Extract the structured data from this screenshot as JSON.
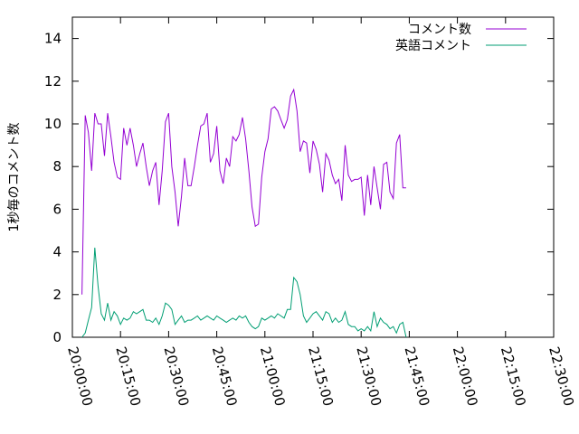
{
  "chart_data": {
    "type": "line",
    "ylabel": "1秒毎のコメント数",
    "xlabel": "",
    "ylim": [
      0,
      15
    ],
    "yticks": [
      0,
      2,
      4,
      6,
      8,
      10,
      12,
      14
    ],
    "xlim": [
      "20:00:00",
      "22:30:00"
    ],
    "xticks": [
      "20:00:00",
      "20:15:00",
      "20:30:00",
      "20:45:00",
      "21:00:00",
      "21:15:00",
      "21:30:00",
      "21:45:00",
      "22:00:00",
      "22:15:00",
      "22:30:00"
    ],
    "legend_position": "top-right",
    "grid": false,
    "series": [
      {
        "name": "コメント数",
        "color": "#9400d3",
        "points": [
          [
            "20:03:00",
            2.0
          ],
          [
            "20:04:00",
            10.4
          ],
          [
            "20:05:00",
            9.6
          ],
          [
            "20:06:00",
            7.8
          ],
          [
            "20:07:00",
            10.5
          ],
          [
            "20:08:00",
            10.0
          ],
          [
            "20:09:00",
            10.0
          ],
          [
            "20:10:00",
            8.5
          ],
          [
            "20:11:00",
            10.5
          ],
          [
            "20:12:00",
            9.4
          ],
          [
            "20:13:00",
            8.2
          ],
          [
            "20:14:00",
            7.5
          ],
          [
            "20:15:00",
            7.4
          ],
          [
            "20:16:00",
            9.8
          ],
          [
            "20:17:00",
            9.0
          ],
          [
            "20:18:00",
            9.8
          ],
          [
            "20:19:00",
            9.0
          ],
          [
            "20:20:00",
            8.0
          ],
          [
            "20:21:00",
            8.6
          ],
          [
            "20:22:00",
            9.1
          ],
          [
            "20:23:00",
            8.0
          ],
          [
            "20:24:00",
            7.1
          ],
          [
            "20:25:00",
            7.8
          ],
          [
            "20:26:00",
            8.2
          ],
          [
            "20:27:00",
            6.2
          ],
          [
            "20:28:00",
            7.8
          ],
          [
            "20:29:00",
            10.1
          ],
          [
            "20:30:00",
            10.5
          ],
          [
            "20:31:00",
            8.0
          ],
          [
            "20:32:00",
            6.8
          ],
          [
            "20:33:00",
            5.2
          ],
          [
            "20:34:00",
            6.6
          ],
          [
            "20:35:00",
            8.4
          ],
          [
            "20:36:00",
            7.1
          ],
          [
            "20:37:00",
            7.1
          ],
          [
            "20:38:00",
            8.0
          ],
          [
            "20:39:00",
            9.0
          ],
          [
            "20:40:00",
            9.9
          ],
          [
            "20:41:00",
            10.0
          ],
          [
            "20:42:00",
            10.5
          ],
          [
            "20:43:00",
            8.2
          ],
          [
            "20:44:00",
            8.6
          ],
          [
            "20:45:00",
            9.9
          ],
          [
            "20:46:00",
            7.8
          ],
          [
            "20:47:00",
            7.2
          ],
          [
            "20:48:00",
            8.4
          ],
          [
            "20:49:00",
            8.0
          ],
          [
            "20:50:00",
            9.4
          ],
          [
            "20:51:00",
            9.2
          ],
          [
            "20:52:00",
            9.5
          ],
          [
            "20:53:00",
            10.3
          ],
          [
            "20:54:00",
            9.3
          ],
          [
            "20:55:00",
            7.8
          ],
          [
            "20:56:00",
            6.1
          ],
          [
            "20:57:00",
            5.2
          ],
          [
            "20:58:00",
            5.3
          ],
          [
            "20:59:00",
            7.5
          ],
          [
            "21:00:00",
            8.7
          ],
          [
            "21:01:00",
            9.3
          ],
          [
            "21:02:00",
            10.7
          ],
          [
            "21:03:00",
            10.8
          ],
          [
            "21:04:00",
            10.6
          ],
          [
            "21:05:00",
            10.2
          ],
          [
            "21:06:00",
            9.8
          ],
          [
            "21:07:00",
            10.2
          ],
          [
            "21:08:00",
            11.3
          ],
          [
            "21:09:00",
            11.6
          ],
          [
            "21:10:00",
            10.6
          ],
          [
            "21:11:00",
            8.7
          ],
          [
            "21:12:00",
            9.2
          ],
          [
            "21:13:00",
            9.1
          ],
          [
            "21:14:00",
            7.7
          ],
          [
            "21:15:00",
            9.2
          ],
          [
            "21:16:00",
            8.8
          ],
          [
            "21:17:00",
            8.1
          ],
          [
            "21:18:00",
            6.8
          ],
          [
            "21:19:00",
            8.6
          ],
          [
            "21:20:00",
            8.3
          ],
          [
            "21:21:00",
            7.6
          ],
          [
            "21:22:00",
            7.2
          ],
          [
            "21:23:00",
            7.4
          ],
          [
            "21:24:00",
            6.4
          ],
          [
            "21:25:00",
            9.0
          ],
          [
            "21:26:00",
            7.6
          ],
          [
            "21:27:00",
            7.3
          ],
          [
            "21:28:00",
            7.4
          ],
          [
            "21:29:00",
            7.4
          ],
          [
            "21:30:00",
            7.5
          ],
          [
            "21:31:00",
            5.7
          ],
          [
            "21:32:00",
            7.6
          ],
          [
            "21:33:00",
            6.2
          ],
          [
            "21:34:00",
            8.0
          ],
          [
            "21:35:00",
            7.0
          ],
          [
            "21:36:00",
            6.0
          ],
          [
            "21:37:00",
            8.1
          ],
          [
            "21:38:00",
            8.2
          ],
          [
            "21:39:00",
            6.8
          ],
          [
            "21:40:00",
            6.5
          ],
          [
            "21:41:00",
            9.1
          ],
          [
            "21:42:00",
            9.5
          ],
          [
            "21:43:00",
            7.0
          ],
          [
            "21:44:00",
            7.0
          ]
        ]
      },
      {
        "name": "英語コメント",
        "color": "#009e73",
        "points": [
          [
            "20:03:00",
            0.0
          ],
          [
            "20:04:00",
            0.2
          ],
          [
            "20:05:00",
            0.8
          ],
          [
            "20:06:00",
            1.4
          ],
          [
            "20:07:00",
            4.2
          ],
          [
            "20:08:00",
            2.4
          ],
          [
            "20:09:00",
            1.1
          ],
          [
            "20:10:00",
            0.8
          ],
          [
            "20:11:00",
            1.6
          ],
          [
            "20:12:00",
            0.8
          ],
          [
            "20:13:00",
            1.2
          ],
          [
            "20:14:00",
            1.0
          ],
          [
            "20:15:00",
            0.6
          ],
          [
            "20:16:00",
            0.9
          ],
          [
            "20:17:00",
            0.8
          ],
          [
            "20:18:00",
            0.9
          ],
          [
            "20:19:00",
            1.2
          ],
          [
            "20:20:00",
            1.1
          ],
          [
            "20:21:00",
            1.2
          ],
          [
            "20:22:00",
            1.3
          ],
          [
            "20:23:00",
            0.8
          ],
          [
            "20:24:00",
            0.8
          ],
          [
            "20:25:00",
            0.7
          ],
          [
            "20:26:00",
            0.9
          ],
          [
            "20:27:00",
            0.6
          ],
          [
            "20:28:00",
            1.0
          ],
          [
            "20:29:00",
            1.6
          ],
          [
            "20:30:00",
            1.5
          ],
          [
            "20:31:00",
            1.3
          ],
          [
            "20:32:00",
            0.6
          ],
          [
            "20:33:00",
            0.8
          ],
          [
            "20:34:00",
            1.0
          ],
          [
            "20:35:00",
            0.7
          ],
          [
            "20:36:00",
            0.8
          ],
          [
            "20:37:00",
            0.8
          ],
          [
            "20:38:00",
            0.9
          ],
          [
            "20:39:00",
            1.0
          ],
          [
            "20:40:00",
            0.8
          ],
          [
            "20:41:00",
            0.9
          ],
          [
            "20:42:00",
            1.0
          ],
          [
            "20:43:00",
            0.9
          ],
          [
            "20:44:00",
            0.8
          ],
          [
            "20:45:00",
            1.0
          ],
          [
            "20:46:00",
            0.9
          ],
          [
            "20:47:00",
            0.8
          ],
          [
            "20:48:00",
            0.7
          ],
          [
            "20:49:00",
            0.8
          ],
          [
            "20:50:00",
            0.9
          ],
          [
            "20:51:00",
            0.8
          ],
          [
            "20:52:00",
            1.0
          ],
          [
            "20:53:00",
            0.9
          ],
          [
            "20:54:00",
            1.0
          ],
          [
            "20:55:00",
            0.7
          ],
          [
            "20:56:00",
            0.5
          ],
          [
            "20:57:00",
            0.4
          ],
          [
            "20:58:00",
            0.5
          ],
          [
            "20:59:00",
            0.9
          ],
          [
            "21:00:00",
            0.8
          ],
          [
            "21:01:00",
            0.9
          ],
          [
            "21:02:00",
            1.0
          ],
          [
            "21:03:00",
            0.9
          ],
          [
            "21:04:00",
            1.1
          ],
          [
            "21:05:00",
            1.0
          ],
          [
            "21:06:00",
            0.9
          ],
          [
            "21:07:00",
            1.3
          ],
          [
            "21:08:00",
            1.3
          ],
          [
            "21:09:00",
            2.8
          ],
          [
            "21:10:00",
            2.6
          ],
          [
            "21:11:00",
            2.0
          ],
          [
            "21:12:00",
            1.0
          ],
          [
            "21:13:00",
            0.7
          ],
          [
            "21:14:00",
            0.9
          ],
          [
            "21:15:00",
            1.1
          ],
          [
            "21:16:00",
            1.2
          ],
          [
            "21:17:00",
            1.0
          ],
          [
            "21:18:00",
            0.8
          ],
          [
            "21:19:00",
            1.2
          ],
          [
            "21:20:00",
            1.1
          ],
          [
            "21:21:00",
            0.7
          ],
          [
            "21:22:00",
            0.9
          ],
          [
            "21:23:00",
            0.7
          ],
          [
            "21:24:00",
            0.8
          ],
          [
            "21:25:00",
            1.2
          ],
          [
            "21:26:00",
            0.6
          ],
          [
            "21:27:00",
            0.5
          ],
          [
            "21:28:00",
            0.5
          ],
          [
            "21:29:00",
            0.3
          ],
          [
            "21:30:00",
            0.4
          ],
          [
            "21:31:00",
            0.3
          ],
          [
            "21:32:00",
            0.5
          ],
          [
            "21:33:00",
            0.3
          ],
          [
            "21:34:00",
            1.2
          ],
          [
            "21:35:00",
            0.5
          ],
          [
            "21:36:00",
            0.9
          ],
          [
            "21:37:00",
            0.7
          ],
          [
            "21:38:00",
            0.6
          ],
          [
            "21:39:00",
            0.4
          ],
          [
            "21:40:00",
            0.5
          ],
          [
            "21:41:00",
            0.2
          ],
          [
            "21:42:00",
            0.6
          ],
          [
            "21:43:00",
            0.7
          ],
          [
            "21:44:00",
            0.0
          ]
        ]
      }
    ]
  }
}
